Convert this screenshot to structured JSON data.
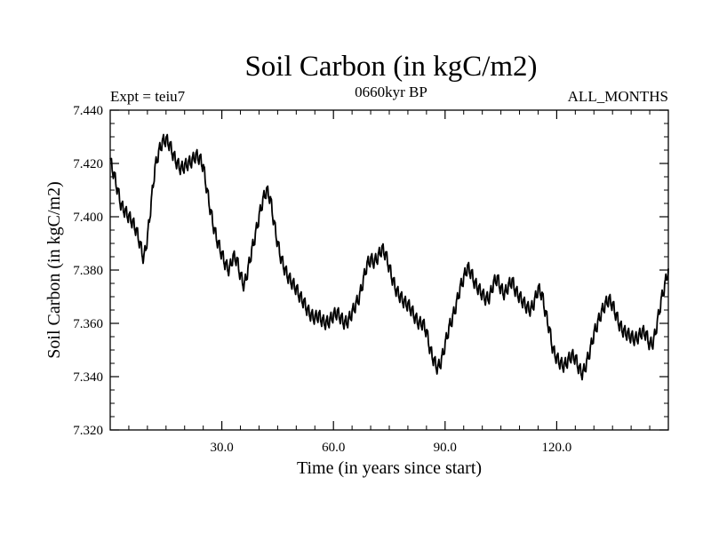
{
  "chart_data": {
    "type": "line",
    "title": "Soil Carbon (in kgC/m2)",
    "subtitle_left": "Expt = teiu7",
    "subtitle_center": "0660kyr BP",
    "subtitle_right": "ALL_MONTHS",
    "xlabel": "Time (in years since start)",
    "ylabel": "Soil Carbon (in kgC/m2)",
    "xlim": [
      0,
      150
    ],
    "ylim": [
      7.32,
      7.44
    ],
    "xticks": [
      30,
      60,
      90,
      120
    ],
    "xtick_labels": [
      "30.0",
      "60.0",
      "90.0",
      "120.0"
    ],
    "yticks": [
      7.32,
      7.34,
      7.36,
      7.38,
      7.4,
      7.42,
      7.44
    ],
    "ytick_labels": [
      "7.320",
      "7.340",
      "7.360",
      "7.380",
      "7.400",
      "7.420",
      "7.440"
    ],
    "series_name": "Soil Carbon",
    "anchor_x": [
      0,
      1,
      2,
      3,
      4,
      5,
      6,
      7,
      8,
      9,
      10,
      11,
      12,
      13,
      14,
      15,
      16,
      17,
      18,
      19,
      20,
      21,
      22,
      23,
      24,
      25,
      26,
      27,
      28,
      29,
      30,
      31,
      32,
      33,
      34,
      35,
      36,
      37,
      38,
      39,
      40,
      41,
      42,
      43,
      44,
      45,
      46,
      47,
      48,
      49,
      50,
      51,
      52,
      53,
      54,
      55,
      56,
      57,
      58,
      59,
      60,
      61,
      62,
      63,
      64,
      65,
      66,
      67,
      68,
      69,
      70,
      71,
      72,
      73,
      74,
      75,
      76,
      77,
      78,
      79,
      80,
      81,
      82,
      83,
      84,
      85,
      86,
      87,
      88,
      89,
      90,
      91,
      92,
      93,
      94,
      95,
      96,
      97,
      98,
      99,
      100,
      101,
      102,
      103,
      104,
      105,
      106,
      107,
      108,
      109,
      110,
      111,
      112,
      113,
      114,
      115,
      116,
      117,
      118,
      119,
      120,
      121,
      122,
      123,
      124,
      125,
      126,
      127,
      128,
      129,
      130,
      131,
      132,
      133,
      134,
      135,
      136,
      137,
      138,
      139,
      140,
      141,
      142,
      143,
      144,
      145,
      146,
      147,
      148,
      149,
      150
    ],
    "anchor_y": [
      7.421,
      7.416,
      7.41,
      7.404,
      7.402,
      7.4,
      7.398,
      7.395,
      7.39,
      7.384,
      7.392,
      7.405,
      7.418,
      7.424,
      7.428,
      7.429,
      7.427,
      7.423,
      7.42,
      7.418,
      7.419,
      7.42,
      7.421,
      7.423,
      7.422,
      7.419,
      7.41,
      7.402,
      7.395,
      7.39,
      7.386,
      7.382,
      7.38,
      7.385,
      7.384,
      7.378,
      7.374,
      7.38,
      7.387,
      7.393,
      7.4,
      7.406,
      7.41,
      7.407,
      7.398,
      7.39,
      7.384,
      7.38,
      7.377,
      7.375,
      7.373,
      7.37,
      7.368,
      7.365,
      7.363,
      7.362,
      7.363,
      7.361,
      7.36,
      7.361,
      7.363,
      7.364,
      7.362,
      7.36,
      7.361,
      7.364,
      7.367,
      7.37,
      7.376,
      7.382,
      7.384,
      7.383,
      7.385,
      7.388,
      7.386,
      7.381,
      7.376,
      7.372,
      7.37,
      7.368,
      7.367,
      7.365,
      7.362,
      7.36,
      7.36,
      7.357,
      7.35,
      7.346,
      7.343,
      7.346,
      7.352,
      7.358,
      7.362,
      7.367,
      7.373,
      7.377,
      7.381,
      7.379,
      7.375,
      7.373,
      7.371,
      7.369,
      7.37,
      7.375,
      7.377,
      7.373,
      7.371,
      7.374,
      7.376,
      7.372,
      7.37,
      7.368,
      7.366,
      7.365,
      7.368,
      7.373,
      7.371,
      7.364,
      7.358,
      7.35,
      7.347,
      7.345,
      7.344,
      7.346,
      7.348,
      7.347,
      7.343,
      7.341,
      7.345,
      7.35,
      7.356,
      7.36,
      7.364,
      7.367,
      7.369,
      7.367,
      7.363,
      7.359,
      7.357,
      7.356,
      7.355,
      7.354,
      7.355,
      7.357,
      7.356,
      7.352,
      7.353,
      7.36,
      7.368,
      7.374,
      7.38
    ]
  }
}
